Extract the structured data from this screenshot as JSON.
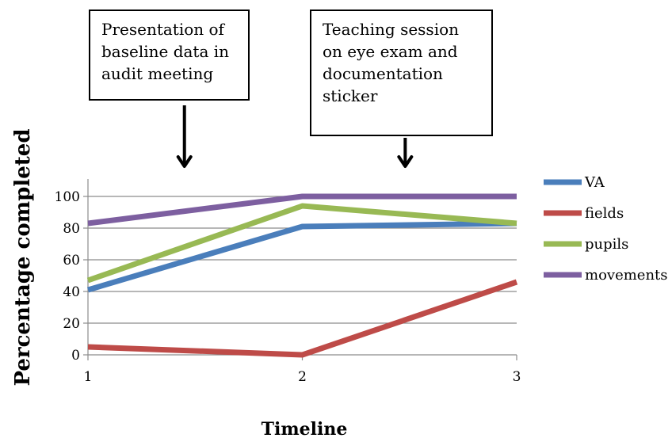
{
  "chart_data": {
    "type": "line",
    "title": "",
    "xlabel": "Timeline",
    "ylabel": "Percentage completed",
    "x": [
      1,
      2,
      3
    ],
    "x_tick_labels": [
      "1",
      "2",
      "3"
    ],
    "y_ticks": [
      0,
      20,
      40,
      60,
      80,
      100
    ],
    "y_tick_labels": [
      "0",
      "20",
      "40",
      "60",
      "80",
      "100"
    ],
    "ylim": [
      0,
      110
    ],
    "grid": "horizontal",
    "legend_position": "right",
    "series": [
      {
        "name": "VA",
        "color": "#4a7ebb",
        "values": [
          41,
          81,
          83
        ]
      },
      {
        "name": "fields",
        "color": "#be4b48",
        "values": [
          5,
          0,
          46
        ]
      },
      {
        "name": "pupils",
        "color": "#98b954",
        "values": [
          47,
          94,
          83
        ]
      },
      {
        "name": "movements",
        "color": "#7d5fa0",
        "values": [
          83,
          100,
          100
        ]
      }
    ],
    "annotations": [
      {
        "lines": [
          "Presentation of",
          "baseline data in",
          "audit meeting"
        ],
        "at_x": 1.45
      },
      {
        "lines": [
          "Teaching session",
          "on eye exam and",
          "documentation",
          "sticker"
        ],
        "at_x": 2.48
      }
    ]
  }
}
